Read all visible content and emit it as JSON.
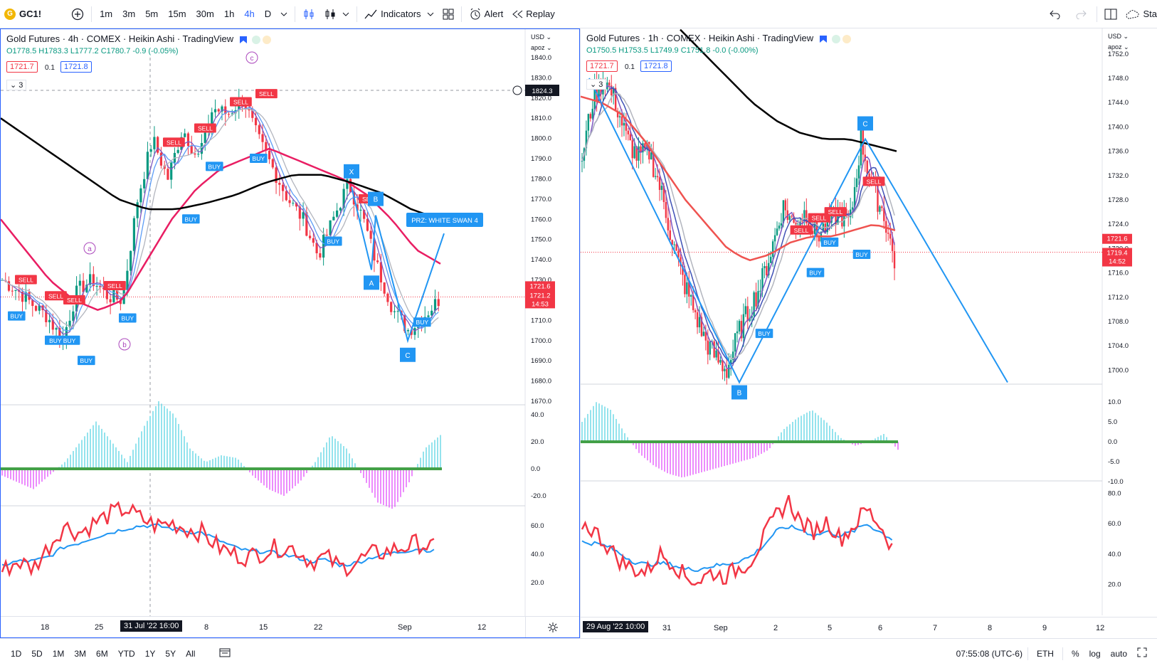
{
  "toolbar": {
    "symbol": "GC1!",
    "timeframes": [
      "1m",
      "3m",
      "5m",
      "15m",
      "30m",
      "1h",
      "4h",
      "D"
    ],
    "active_timeframe": "4h",
    "indicators_label": "Indicators",
    "alert_label": "Alert",
    "replay_label": "Replay",
    "right_cut_label": "Sta"
  },
  "left_chart": {
    "title": "Gold Futures · 4h · COMEX · Heikin Ashi · TradingView",
    "ohlc": "O1778.5 H1783.3 L1777.2 C1780.7 -0.9 (-0.05%)",
    "bid": "1721.7",
    "spread": "0.1",
    "ask": "1721.8",
    "collapse_count": "3",
    "currency": "USD",
    "scale_mode": "apoz",
    "crosshair_price": "1824.3",
    "last_price": "1721.6",
    "last_price2": "1721.2",
    "countdown": "14:53",
    "price_ticks": [
      "1840.0",
      "1830.0",
      "1820.0",
      "1810.0",
      "1800.0",
      "1790.0",
      "1780.0",
      "1770.0",
      "1760.0",
      "1750.0",
      "1740.0",
      "1730.0",
      "1720.0",
      "1710.0",
      "1700.0",
      "1690.0",
      "1680.0",
      "1670.0"
    ],
    "osc_ticks": [
      "40.0",
      "20.0",
      "0.0",
      "-20.0"
    ],
    "rsi_ticks": [
      "60.0",
      "40.0",
      "20.0"
    ],
    "x_labels": [
      "18",
      "25",
      "31 Jul '22  16:00",
      "8",
      "15",
      "22",
      "Sep",
      "12"
    ],
    "pattern_labels": [
      "X",
      "A",
      "B",
      "C"
    ],
    "prz_label": "PRZ: WHITE SWAN 4",
    "wave_labels": [
      "a",
      "b",
      "c"
    ]
  },
  "right_chart": {
    "title": "Gold Futures · 1h · COMEX · Heikin Ashi · TradingView",
    "ohlc": "O1750.5 H1753.5 L1749.9 C1751.8 -0.0 (-0.00%)",
    "bid": "1721.7",
    "spread": "0.1",
    "ask": "1721.8",
    "collapse_count": "3",
    "currency": "USD",
    "scale_mode": "apoz",
    "last_price": "1721.6",
    "last_price2": "1719.4",
    "countdown": "14:52",
    "price_ticks": [
      "1752.0",
      "1748.0",
      "1744.0",
      "1740.0",
      "1736.0",
      "1732.0",
      "1728.0",
      "1724.0",
      "1720.0",
      "1716.0",
      "1712.0",
      "1708.0",
      "1704.0",
      "1700.0"
    ],
    "osc_ticks": [
      "10.0",
      "5.0",
      "0.0",
      "-5.0",
      "-10.0"
    ],
    "rsi_ticks": [
      "80.0",
      "60.0",
      "40.0",
      "20.0"
    ],
    "x_labels": [
      "29 Aug '22  10:00",
      "31",
      "Sep",
      "2",
      "5",
      "6",
      "7",
      "8",
      "9",
      "12"
    ],
    "pattern_labels": [
      "B",
      "C"
    ]
  },
  "bottombar": {
    "ranges": [
      "1D",
      "5D",
      "1M",
      "3M",
      "6M",
      "YTD",
      "1Y",
      "5Y",
      "All"
    ],
    "clock": "07:55:08 (UTC-6)",
    "session": "ETH",
    "pct": "%",
    "log": "log",
    "auto": "auto"
  },
  "colors": {
    "accent": "#2962ff",
    "bull": "#089981",
    "bear": "#f23645",
    "harmonic": "#2196f3",
    "ma_black": "#000000",
    "ma_red": "#e91e63"
  }
}
